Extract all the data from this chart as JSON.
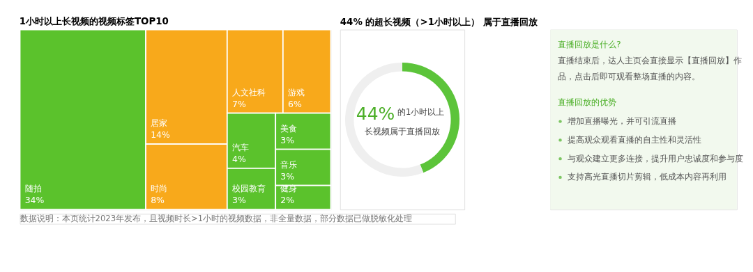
{
  "chart_data": [
    {
      "type": "other",
      "title": "1小时以上长视频的视频标签TOP10",
      "categories": [
        "随拍",
        "居家",
        "时尚",
        "人文社科",
        "游戏",
        "汽车",
        "校园教育",
        "美食",
        "音乐",
        "健身"
      ],
      "values": [
        34,
        14,
        8,
        7,
        6,
        4,
        3,
        3,
        3,
        2
      ],
      "value_labels": [
        "34%",
        "14%",
        "8%",
        "7%",
        "6%",
        "4%",
        "3%",
        "3%",
        "3%",
        "2%"
      ],
      "colors": [
        "#5bc22c",
        "#f8a91b",
        "#f8a91b",
        "#f8a91b",
        "#f8a91b",
        "#5bc22c",
        "#5bc22c",
        "#5bc22c",
        "#5bc22c",
        "#5bc22c"
      ],
      "annotations": [
        "数据说明：本页统计2023年发布，且视频时长>1小时的视频数据，非全量数据，部分数据已做脱敏化处理"
      ]
    },
    {
      "type": "donut",
      "title": "44% 的超长视频（>1小时以上） 属于直播回放",
      "categories": [
        null,
        null
      ],
      "values": [
        44,
        56
      ],
      "colors": [
        "#5cc43a",
        "#efefef"
      ],
      "annotations": [
        "44%",
        "的1小时以上",
        "长视频属于直播回放"
      ]
    },
    {
      "type": "other",
      "title": "直播回放是什么?",
      "annotations": [
        "直播结束后，达人主页会直接显示【直播回放】作品，点击后即可观看整场直播的内容。",
        "直播回放的优势",
        "增加直播曝光，并可引流直播",
        "提高观众观看直播的自主性和灵活性",
        "与观众建立更多连接，提升用户忠诚度和参与度",
        "支持高光直播切片剪辑，低成本内容再利用"
      ]
    }
  ]
}
